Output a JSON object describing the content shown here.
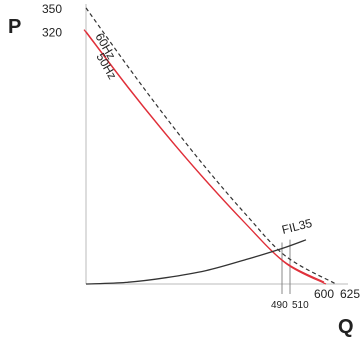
{
  "chart_data": {
    "type": "line",
    "xlabel": "Q",
    "ylabel": "P",
    "xlim": [
      0,
      660
    ],
    "ylim": [
      0,
      360
    ],
    "grid": false,
    "y_ticks": [
      {
        "value": 350,
        "label": "350"
      },
      {
        "value": 320,
        "label": "320"
      }
    ],
    "x_ticks": [
      {
        "value": 490,
        "label": "490"
      },
      {
        "value": 510,
        "label": "510"
      },
      {
        "value": 600,
        "label": "600"
      },
      {
        "value": 625,
        "label": "625"
      }
    ],
    "series": [
      {
        "name": "60Hz",
        "style": "dashed",
        "color": "#333333",
        "x": [
          0,
          100,
          200,
          300,
          400,
          500,
          625
        ],
        "y": [
          350,
          279,
          211,
          147,
          88,
          35,
          0
        ]
      },
      {
        "name": "50Hz",
        "style": "solid-double",
        "color": "#e0303a",
        "x": [
          0,
          100,
          200,
          300,
          400,
          500,
          600
        ],
        "y": [
          320,
          253,
          190,
          131,
          76,
          26,
          0
        ]
      },
      {
        "name": "FIL35",
        "style": "solid",
        "color": "#333333",
        "x": [
          0,
          100,
          200,
          300,
          400,
          490,
          550
        ],
        "y": [
          0,
          2,
          8,
          17,
          31,
          45,
          56
        ]
      }
    ],
    "reference_lines": [
      {
        "x": 490
      },
      {
        "x": 510
      }
    ]
  }
}
